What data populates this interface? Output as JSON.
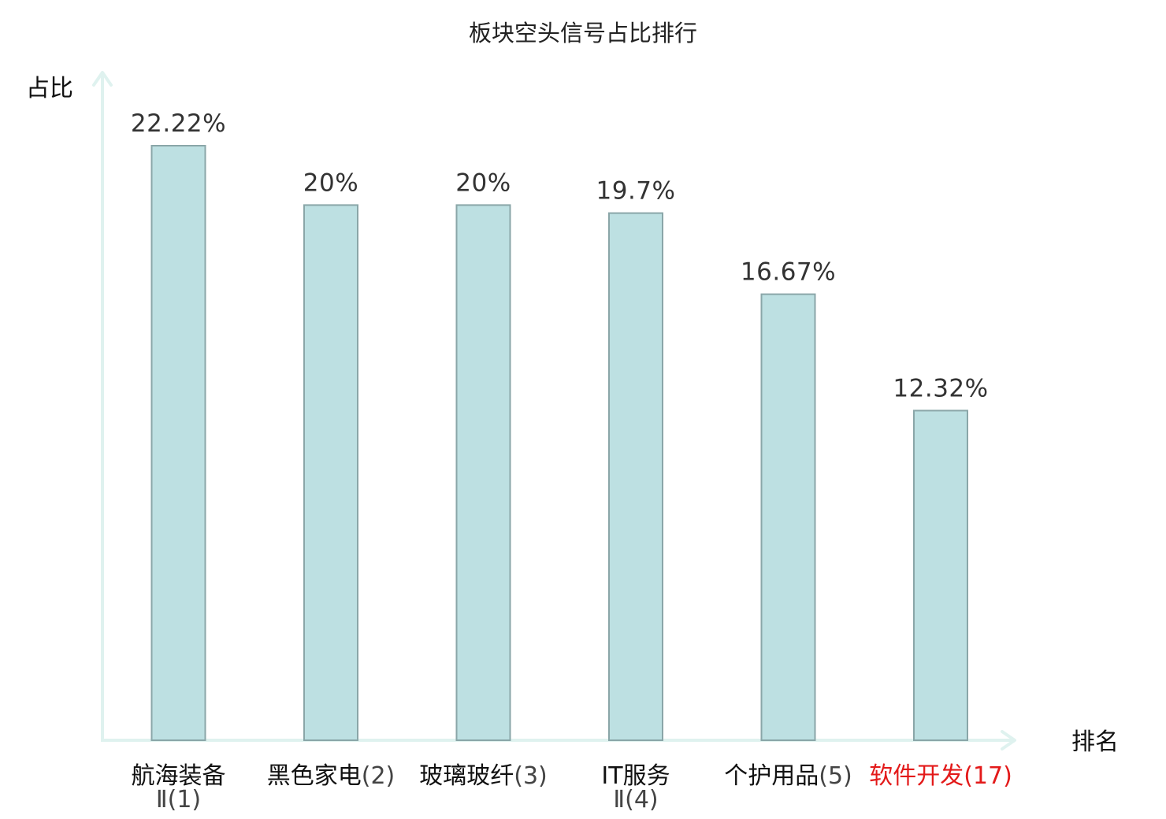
{
  "chart_data": {
    "type": "bar",
    "title": "板块空头信号占比排行",
    "ylabel": "占比",
    "xlabel": "排名",
    "ylim": [
      0,
      22.22
    ],
    "grid": false,
    "categories": [
      {
        "name": "航海装备",
        "rank": "Ⅱ(1)",
        "highlight": false
      },
      {
        "name": "黑色家电",
        "rank": "(2)",
        "highlight": false
      },
      {
        "name": "玻璃玻纤",
        "rank": "(3)",
        "highlight": false
      },
      {
        "name": "IT服务",
        "rank": "Ⅱ(4)",
        "highlight": false
      },
      {
        "name": "个护用品",
        "rank": "(5)",
        "highlight": false
      },
      {
        "name": "软件开发",
        "rank": "(17)",
        "highlight": true
      }
    ],
    "values": [
      22.22,
      20,
      20,
      19.7,
      16.67,
      12.32
    ],
    "value_labels": [
      "22.22%",
      "20%",
      "20%",
      "19.7%",
      "16.67%",
      "12.32%"
    ]
  },
  "colors": {
    "bar_fill": "#bde0e2",
    "bar_stroke": "#8aa6a8",
    "axis": "#dff2ef",
    "highlight": "#e31a1a",
    "category_name": "#111111",
    "category_rank": "#444444"
  }
}
